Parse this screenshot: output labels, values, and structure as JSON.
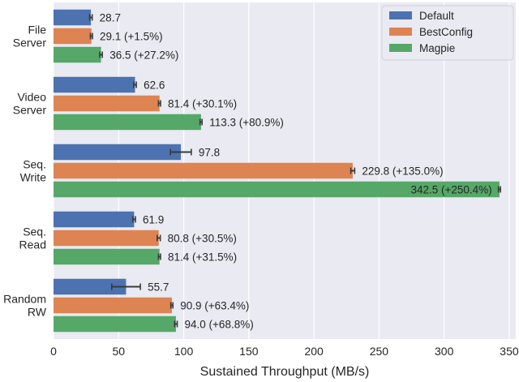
{
  "chart_data": {
    "type": "bar",
    "orientation": "horizontal",
    "categories": [
      "File\nServer",
      "Video\nServer",
      "Seq.\nWrite",
      "Seq.\nRead",
      "Random\nRW"
    ],
    "series": [
      {
        "name": "Default",
        "color": "#4c72b0",
        "values": [
          28.7,
          62.6,
          97.8,
          61.9,
          55.7
        ],
        "errors": [
          1.0,
          1.0,
          8.0,
          1.0,
          11.0
        ],
        "labels": [
          "28.7",
          "62.6",
          "97.8",
          "61.9",
          "55.7"
        ]
      },
      {
        "name": "BestConfig",
        "color": "#dd8452",
        "values": [
          29.1,
          81.4,
          229.8,
          80.8,
          90.9
        ],
        "errors": [
          0.8,
          0.8,
          1.5,
          1.2,
          0.8
        ],
        "labels": [
          "29.1 (+1.5%)",
          "81.4 (+30.1%)",
          "229.8 (+135.0%)",
          "80.8 (+30.5%)",
          "90.9 (+63.4%)"
        ]
      },
      {
        "name": "Magpie",
        "color": "#55a868",
        "values": [
          36.5,
          113.3,
          342.5,
          81.4,
          94.0
        ],
        "errors": [
          1.0,
          0.8,
          0.8,
          0.8,
          1.0
        ],
        "labels": [
          "36.5 (+27.2%)",
          "113.3 (+80.9%)",
          "342.5 (+250.4%)",
          "81.4 (+31.5%)",
          "94.0 (+68.8%)"
        ]
      }
    ],
    "xlabel": "Sustained Throughput (MB/s)",
    "ylabel": "",
    "xlim": [
      0,
      355
    ],
    "xticks": [
      0,
      50,
      100,
      150,
      200,
      250,
      300,
      350
    ],
    "grid": true,
    "background": "#eaeaf2",
    "legend_position": "top-right"
  }
}
